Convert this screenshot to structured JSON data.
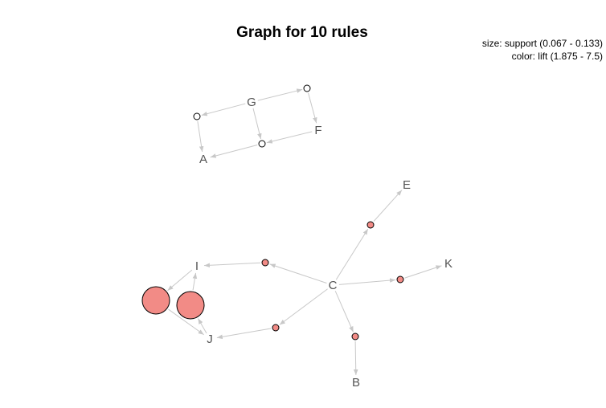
{
  "graph": {
    "title": "Graph for 10 rules",
    "legend_size": "size: support (0.067 - 0.133)",
    "legend_color": "color: lift (1.875 - 7.5)",
    "items": [
      {
        "id": "G",
        "label": "G"
      },
      {
        "id": "F",
        "label": "F"
      },
      {
        "id": "A",
        "label": "A"
      },
      {
        "id": "E",
        "label": "E"
      },
      {
        "id": "I",
        "label": "I"
      },
      {
        "id": "C",
        "label": "C"
      },
      {
        "id": "K",
        "label": "K"
      },
      {
        "id": "J",
        "label": "J"
      },
      {
        "id": "B",
        "label": "B"
      }
    ],
    "rules": [
      {
        "id": "r1",
        "lhs": [
          "G"
        ],
        "rhs": [
          "F"
        ],
        "support": "low",
        "lift": "low"
      },
      {
        "id": "r2",
        "lhs": [
          "G"
        ],
        "rhs": [
          "A"
        ],
        "support": "low",
        "lift": "low"
      },
      {
        "id": "r3",
        "lhs": [
          "G",
          "F"
        ],
        "rhs": [
          "A"
        ],
        "support": "low",
        "lift": "low"
      },
      {
        "id": "r4",
        "lhs": [
          "C"
        ],
        "rhs": [
          "E"
        ],
        "support": "low",
        "lift": "mid"
      },
      {
        "id": "r5",
        "lhs": [
          "C"
        ],
        "rhs": [
          "I"
        ],
        "support": "low",
        "lift": "mid"
      },
      {
        "id": "r6",
        "lhs": [
          "C"
        ],
        "rhs": [
          "K"
        ],
        "support": "low",
        "lift": "mid"
      },
      {
        "id": "r7",
        "lhs": [
          "C"
        ],
        "rhs": [
          "J"
        ],
        "support": "low",
        "lift": "mid"
      },
      {
        "id": "r8",
        "lhs": [
          "C"
        ],
        "rhs": [
          "B"
        ],
        "support": "low",
        "lift": "mid"
      },
      {
        "id": "r9",
        "lhs": [
          "J"
        ],
        "rhs": [
          "I"
        ],
        "support": "high",
        "lift": "high"
      },
      {
        "id": "r10",
        "lhs": [
          "I"
        ],
        "rhs": [
          "J"
        ],
        "support": "high",
        "lift": "high"
      }
    ],
    "colors": {
      "edge": "#c8c8c8",
      "rule_low_lift": "#ffffff",
      "rule_high_lift": "#f28b86",
      "label": "#555555"
    }
  }
}
